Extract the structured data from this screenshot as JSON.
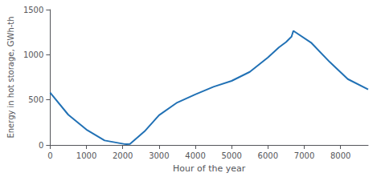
{
  "chart_data": {
    "type": "line",
    "x": [
      0,
      500,
      1000,
      1500,
      2050,
      2100,
      2200,
      2600,
      3000,
      3500,
      4000,
      4500,
      5000,
      5500,
      6000,
      6300,
      6500,
      6650,
      6700,
      7200,
      7700,
      8200,
      8760
    ],
    "values": [
      580,
      335,
      170,
      50,
      10,
      8,
      12,
      150,
      330,
      470,
      560,
      645,
      710,
      810,
      970,
      1080,
      1140,
      1200,
      1265,
      1130,
      920,
      730,
      615
    ],
    "color": "#2171b5",
    "xlabel": "Hour of the year",
    "ylabel": "Energy in hot storage, GWh-th",
    "xlim": [
      0,
      8760
    ],
    "ylim": [
      0,
      1500
    ],
    "xticks": [
      0,
      1000,
      2000,
      3000,
      4000,
      5000,
      6000,
      7000,
      8000
    ],
    "yticks": [
      0,
      500,
      1000,
      1500
    ],
    "grid": false
  }
}
